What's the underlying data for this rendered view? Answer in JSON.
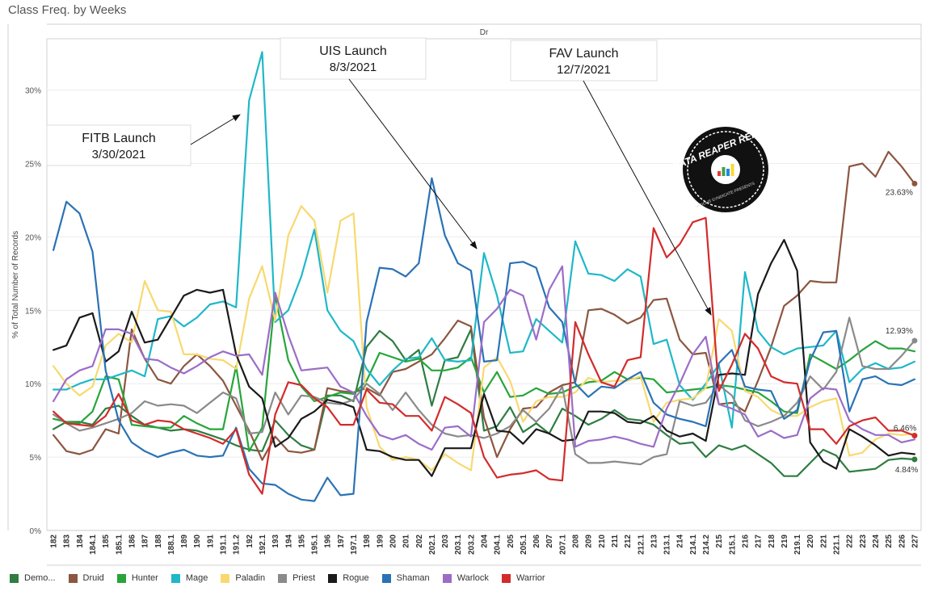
{
  "page": {
    "title": "Class Freq. by Weeks"
  },
  "chart_data": {
    "type": "line",
    "header": "Dr",
    "ylabel": "% of Total Number of Records",
    "ylim": [
      0,
      33.5
    ],
    "y_ticks": [
      "0%",
      "5%",
      "10%",
      "15%",
      "20%",
      "25%",
      "30%"
    ],
    "y_tick_values": [
      0,
      5,
      10,
      15,
      20,
      25,
      30
    ],
    "grid": "horizontal",
    "legend_position": "bottom",
    "x": [
      "182",
      "183",
      "184",
      "184.1",
      "185",
      "185.1",
      "186",
      "187",
      "188",
      "188.1",
      "189",
      "190",
      "191",
      "191.1",
      "191.2",
      "192",
      "192.1",
      "193",
      "194",
      "195",
      "195.1",
      "196",
      "197",
      "197.1",
      "198",
      "199",
      "200",
      "201",
      "202",
      "202.1",
      "203",
      "203.1",
      "203.2",
      "204",
      "204.1",
      "205",
      "205.1",
      "206",
      "207",
      "207.1",
      "208",
      "209",
      "210",
      "211",
      "212",
      "212.1",
      "213",
      "213.1",
      "214",
      "214.1",
      "214.2",
      "215",
      "215.1",
      "216",
      "217",
      "218",
      "219",
      "219.1",
      "220",
      "221",
      "221.1",
      "222",
      "223",
      "224",
      "225",
      "226",
      "227"
    ],
    "series": [
      {
        "name": "Demo...",
        "color": "#2e7d41",
        "values": [
          6.9,
          7.4,
          7.4,
          7.2,
          8.3,
          8.5,
          7.8,
          7.2,
          7.0,
          6.8,
          6.9,
          6.8,
          6.5,
          6.2,
          5.8,
          5.5,
          5.4,
          7.5,
          6.5,
          5.8,
          5.5,
          9.2,
          9.2,
          8.8,
          12.5,
          13.6,
          12.9,
          11.6,
          12.3,
          8.5,
          11.6,
          11.8,
          13.7,
          6.8,
          7.1,
          8.4,
          6.7,
          7.3,
          6.6,
          8.3,
          7.8,
          7.2,
          7.6,
          8.2,
          7.6,
          7.5,
          7.2,
          6.5,
          5.9,
          6.0,
          5.0,
          5.8,
          5.5,
          5.8,
          5.2,
          4.6,
          3.7,
          3.7,
          4.6,
          5.5,
          5.1,
          4.0,
          4.1,
          4.2,
          4.8,
          4.9,
          4.84
        ]
      },
      {
        "name": "Druid",
        "color": "#8c5640",
        "values": [
          6.5,
          5.4,
          5.2,
          5.5,
          6.9,
          6.6,
          13.7,
          11.7,
          10.3,
          10.0,
          11.2,
          12.0,
          11.2,
          10.2,
          8.5,
          6.8,
          4.8,
          6.4,
          5.4,
          5.3,
          5.5,
          9.7,
          9.5,
          9.4,
          9.7,
          9.2,
          10.8,
          11.0,
          11.5,
          12.0,
          13.1,
          14.3,
          13.9,
          7.7,
          5.0,
          6.9,
          8.3,
          8.4,
          9.4,
          9.9,
          10.1,
          15.0,
          15.1,
          14.7,
          14.1,
          14.5,
          15.7,
          15.8,
          13.0,
          12.0,
          12.1,
          8.6,
          8.7,
          8.1,
          10.2,
          12.5,
          15.3,
          16.0,
          17.0,
          16.9,
          16.9,
          24.8,
          25.0,
          24.1,
          25.8,
          24.8,
          23.63
        ]
      },
      {
        "name": "Hunter",
        "color": "#27a53a",
        "values": [
          7.6,
          7.4,
          7.3,
          8.1,
          10.5,
          10.3,
          7.2,
          7.1,
          7.0,
          7.0,
          7.8,
          7.3,
          6.9,
          6.9,
          11.2,
          5.4,
          7.0,
          16.0,
          11.6,
          9.8,
          8.8,
          9.1,
          9.4,
          9.3,
          10.2,
          12.1,
          11.8,
          11.5,
          11.7,
          10.9,
          10.9,
          11.1,
          11.8,
          9.4,
          10.8,
          9.1,
          9.2,
          9.7,
          9.3,
          9.4,
          9.8,
          10.1,
          10.2,
          10.8,
          10.3,
          10.4,
          10.3,
          9.4,
          9.5,
          9.6,
          9.7,
          9.9,
          9.8,
          9.6,
          9.4,
          8.8,
          8.1,
          8.0,
          12.0,
          11.5,
          11.0,
          11.6,
          12.3,
          12.9,
          12.4,
          12.4,
          12.2
        ]
      },
      {
        "name": "Mage",
        "color": "#1fb8c8",
        "values": [
          9.6,
          9.6,
          10.0,
          10.3,
          10.3,
          10.6,
          10.9,
          10.5,
          14.4,
          14.6,
          13.9,
          14.5,
          15.4,
          15.6,
          15.2,
          29.3,
          32.6,
          14.2,
          15.0,
          17.3,
          20.5,
          15.0,
          13.6,
          12.9,
          11.0,
          9.9,
          10.9,
          11.7,
          11.8,
          13.1,
          11.6,
          11.5,
          11.6,
          18.9,
          16.0,
          12.1,
          12.2,
          14.4,
          13.6,
          12.8,
          19.7,
          17.5,
          17.4,
          17.0,
          17.8,
          17.3,
          12.7,
          13.0,
          9.9,
          8.9,
          10.0,
          11.3,
          7.0,
          17.6,
          13.6,
          12.5,
          12.0,
          12.4,
          12.5,
          12.6,
          13.6,
          10.1,
          11.0,
          11.4,
          11.0,
          11.1,
          11.5
        ]
      },
      {
        "name": "Paladin",
        "color": "#f8d970",
        "values": [
          11.2,
          10.0,
          9.2,
          9.8,
          12.6,
          13.4,
          12.8,
          17.0,
          15.0,
          14.9,
          12.0,
          12.0,
          11.7,
          11.6,
          11.0,
          15.8,
          18.0,
          14.3,
          20.1,
          22.1,
          21.1,
          16.2,
          21.1,
          21.6,
          8.4,
          5.7,
          4.8,
          5.0,
          4.8,
          4.1,
          5.2,
          4.6,
          4.1,
          11.1,
          11.8,
          10.2,
          7.4,
          8.8,
          9.1,
          9.1,
          9.4,
          10.4,
          10.1,
          10.2,
          10.2,
          10.5,
          7.4,
          8.7,
          8.9,
          9.0,
          9.7,
          14.4,
          13.6,
          9.5,
          9.1,
          8.2,
          7.8,
          7.8,
          8.4,
          8.8,
          9.0,
          5.1,
          5.3,
          6.2,
          6.6,
          6.5,
          6.6
        ]
      },
      {
        "name": "Priest",
        "color": "#8a8a8a",
        "values": [
          7.9,
          7.3,
          6.8,
          7.0,
          7.3,
          7.6,
          8.0,
          8.8,
          8.5,
          8.6,
          8.5,
          8.0,
          8.7,
          9.4,
          9.0,
          6.6,
          6.7,
          9.4,
          7.9,
          9.2,
          9.1,
          8.7,
          8.6,
          8.9,
          10.0,
          9.3,
          8.2,
          9.4,
          8.2,
          7.2,
          6.6,
          6.4,
          6.5,
          6.3,
          6.6,
          7.1,
          8.2,
          7.4,
          8.3,
          9.8,
          5.2,
          4.6,
          4.6,
          4.7,
          4.6,
          4.5,
          5.0,
          5.2,
          8.8,
          8.5,
          8.7,
          9.9,
          9.2,
          7.5,
          7.1,
          7.4,
          7.8,
          8.7,
          10.5,
          9.6,
          10.8,
          14.5,
          11.2,
          11.0,
          11.0,
          11.9,
          12.93
        ]
      },
      {
        "name": "Rogue",
        "color": "#1a1a1a",
        "values": [
          12.3,
          12.6,
          14.5,
          14.8,
          11.5,
          12.2,
          14.9,
          12.8,
          13.0,
          14.5,
          16.0,
          16.4,
          16.2,
          16.4,
          12.0,
          9.8,
          9.0,
          5.7,
          6.3,
          7.6,
          8.1,
          8.9,
          8.7,
          8.4,
          5.5,
          5.4,
          5.0,
          4.8,
          4.8,
          3.7,
          5.6,
          5.6,
          5.6,
          9.3,
          6.8,
          6.7,
          5.9,
          6.9,
          6.6,
          6.1,
          6.2,
          8.1,
          8.1,
          8.0,
          7.4,
          7.3,
          7.8,
          6.8,
          6.4,
          6.6,
          6.1,
          10.6,
          10.7,
          10.6,
          16.1,
          18.2,
          19.8,
          17.7,
          6.0,
          4.7,
          4.2,
          6.9,
          6.4,
          5.8,
          5.1,
          5.3,
          5.2
        ]
      },
      {
        "name": "Shaman",
        "color": "#2a72b5",
        "values": [
          19.1,
          22.4,
          21.6,
          19.0,
          10.9,
          7.5,
          6.0,
          5.4,
          5.0,
          5.3,
          5.5,
          5.1,
          5.0,
          5.1,
          7.0,
          4.2,
          3.2,
          3.1,
          2.5,
          2.1,
          2.0,
          3.6,
          2.4,
          2.5,
          14.2,
          17.9,
          17.8,
          17.3,
          18.2,
          24.0,
          20.1,
          18.2,
          17.7,
          11.5,
          11.6,
          18.2,
          18.3,
          17.9,
          15.2,
          14.2,
          10.0,
          9.1,
          9.8,
          9.7,
          10.3,
          10.8,
          8.7,
          7.9,
          7.6,
          7.4,
          7.1,
          11.4,
          12.3,
          9.8,
          9.6,
          9.5,
          7.6,
          8.2,
          11.6,
          13.5,
          13.6,
          8.1,
          10.3,
          10.5,
          10.0,
          9.9,
          10.3
        ]
      },
      {
        "name": "Warlock",
        "color": "#9b6dc7",
        "values": [
          8.8,
          10.3,
          10.9,
          11.2,
          13.7,
          13.7,
          13.4,
          11.7,
          11.6,
          11.1,
          10.7,
          11.2,
          11.8,
          12.2,
          11.9,
          12.0,
          10.6,
          16.2,
          13.3,
          10.9,
          11.0,
          11.1,
          9.8,
          9.4,
          7.8,
          6.5,
          6.2,
          6.5,
          5.9,
          5.5,
          7.0,
          7.1,
          6.4,
          14.2,
          15.1,
          16.4,
          16.0,
          13.0,
          16.4,
          18.0,
          5.7,
          6.1,
          6.2,
          6.4,
          6.2,
          5.9,
          5.7,
          8.3,
          10.0,
          12.0,
          13.2,
          8.6,
          8.3,
          7.9,
          6.4,
          6.8,
          6.3,
          6.5,
          9.0,
          9.7,
          9.6,
          7.5,
          6.9,
          6.5,
          6.5,
          6.0,
          6.2
        ]
      },
      {
        "name": "Warrior",
        "color": "#d32b2b",
        "values": [
          8.1,
          7.3,
          7.2,
          7.1,
          7.8,
          9.3,
          7.5,
          7.2,
          7.5,
          7.4,
          6.9,
          6.6,
          6.3,
          5.9,
          6.9,
          3.8,
          2.5,
          7.9,
          10.1,
          9.9,
          9.0,
          8.4,
          7.2,
          7.2,
          9.6,
          8.7,
          8.6,
          7.8,
          7.8,
          6.8,
          9.1,
          8.6,
          8.0,
          5.0,
          3.6,
          3.8,
          3.9,
          4.1,
          3.5,
          3.4,
          14.2,
          12.0,
          10.1,
          9.8,
          11.6,
          11.8,
          20.6,
          18.6,
          19.5,
          21.0,
          21.3,
          9.5,
          11.3,
          13.4,
          12.4,
          10.5,
          10.1,
          10.0,
          6.9,
          6.9,
          5.9,
          7.1,
          7.5,
          7.7,
          6.8,
          6.8,
          6.46
        ]
      }
    ],
    "end_labels": [
      {
        "series": "Druid",
        "text": "23.63%"
      },
      {
        "series": "Priest",
        "text": "12.93%"
      },
      {
        "series": "Warrior",
        "text": "6.46%"
      },
      {
        "series": "Demo...",
        "text": "4.84%"
      }
    ],
    "annotations": [
      {
        "title": "FITB Launch",
        "date": "3/30/2021"
      },
      {
        "title": "UIS Launch",
        "date": "8/3/2021"
      },
      {
        "title": "FAV Launch",
        "date": "12/7/2021"
      }
    ],
    "logo": {
      "text": "DATA REAPER REPORT",
      "subtext": "VICIOUS SYNDICATE PRESENTS"
    }
  }
}
